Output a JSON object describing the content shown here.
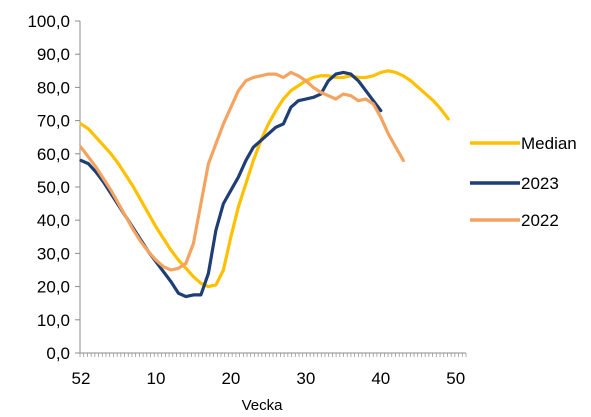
{
  "chart_data": {
    "type": "line",
    "title": "",
    "xlabel": "Vecka",
    "ylabel": "",
    "ylim": [
      0,
      100
    ],
    "y_ticks": [
      "0,0",
      "10,0",
      "20,0",
      "30,0",
      "40,0",
      "50,0",
      "60,0",
      "70,0",
      "80,0",
      "90,0",
      "100,0"
    ],
    "x_tick_labels": [
      "52",
      "10",
      "20",
      "30",
      "40",
      "50"
    ],
    "x": [
      "52",
      "1",
      "2",
      "3",
      "4",
      "5",
      "6",
      "7",
      "8",
      "9",
      "10",
      "11",
      "12",
      "13",
      "14",
      "15",
      "16",
      "17",
      "18",
      "19",
      "20",
      "21",
      "22",
      "23",
      "24",
      "25",
      "26",
      "27",
      "28",
      "29",
      "30",
      "31",
      "32",
      "33",
      "34",
      "35",
      "36",
      "37",
      "38",
      "39",
      "40",
      "41",
      "42",
      "43",
      "44",
      "45",
      "46",
      "47",
      "48",
      "49",
      "50",
      "51"
    ],
    "grid": false,
    "legend_position": "right",
    "series": [
      {
        "name": "Median",
        "color": "#FFC000",
        "values": [
          69.0,
          67.5,
          65.0,
          62.5,
          60.0,
          57.0,
          53.5,
          50.0,
          46.0,
          42.0,
          38.0,
          34.5,
          31.0,
          28.0,
          25.5,
          23.0,
          21.0,
          20.0,
          20.5,
          25.0,
          35.0,
          44.0,
          51.0,
          58.0,
          64.0,
          69.0,
          73.0,
          76.5,
          79.0,
          80.5,
          82.0,
          83.0,
          83.5,
          83.5,
          83.0,
          83.0,
          83.5,
          83.0,
          83.0,
          83.5,
          84.5,
          85.0,
          84.5,
          83.5,
          82.0,
          80.0,
          78.0,
          76.0,
          73.5,
          70.5,
          null,
          null
        ]
      },
      {
        "name": "2023",
        "color": "#1F3F74",
        "values": [
          58.0,
          57.0,
          54.5,
          51.5,
          48.0,
          44.5,
          41.0,
          37.5,
          34.0,
          30.5,
          27.5,
          24.5,
          21.5,
          18.0,
          17.0,
          17.5,
          17.5,
          24.0,
          37.0,
          45.0,
          49.0,
          53.0,
          58.0,
          62.0,
          64.0,
          66.0,
          68.0,
          69.0,
          74.0,
          76.0,
          76.5,
          77.0,
          78.0,
          82.0,
          84.0,
          84.5,
          84.0,
          82.0,
          79.0,
          76.0,
          73.0,
          null,
          null,
          null,
          null,
          null,
          null,
          null,
          null,
          null,
          null,
          null
        ]
      },
      {
        "name": "2022",
        "color": "#F4A460",
        "values": [
          62.0,
          59.0,
          56.0,
          52.5,
          49.0,
          45.0,
          41.0,
          37.0,
          33.5,
          30.5,
          28.0,
          26.0,
          25.0,
          25.5,
          27.0,
          33.0,
          45.0,
          57.0,
          63.0,
          69.0,
          74.0,
          79.0,
          82.0,
          83.0,
          83.5,
          84.0,
          84.0,
          83.0,
          84.5,
          83.5,
          82.0,
          80.0,
          78.5,
          77.5,
          76.5,
          78.0,
          77.5,
          76.0,
          76.5,
          75.0,
          71.0,
          66.0,
          62.0,
          58.0,
          null,
          null,
          null,
          null,
          null,
          null,
          null,
          null
        ]
      }
    ]
  }
}
